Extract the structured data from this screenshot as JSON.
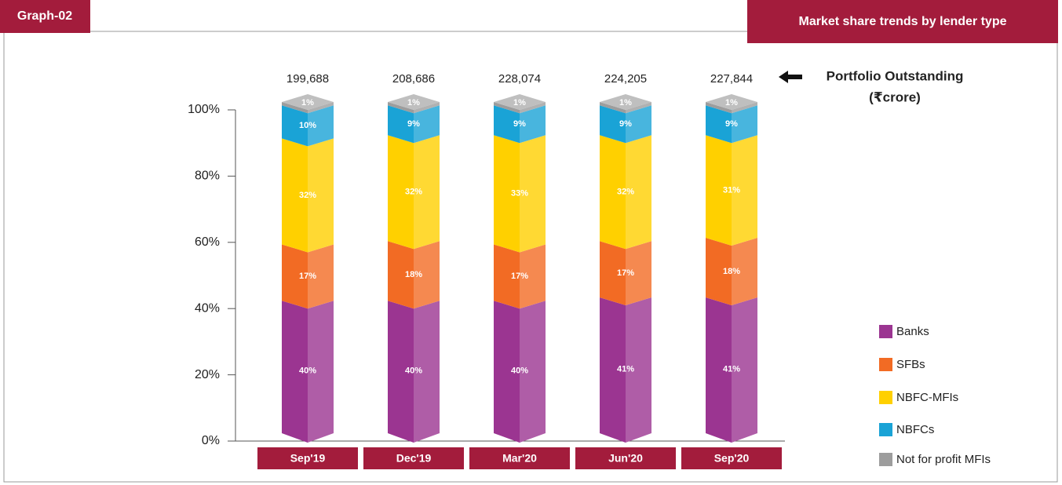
{
  "chart_data": {
    "type": "stacked-bar",
    "tag": "Graph-02",
    "title": "Market share trends by lender type",
    "categories": [
      "Sep'19",
      "Dec'19",
      "Mar'20",
      "Jun'20",
      "Sep'20"
    ],
    "series": [
      {
        "name": "Banks",
        "color": "#9b3591",
        "values": [
          40,
          40,
          40,
          41,
          41
        ],
        "value_labels": [
          "40%",
          "40%",
          "40%",
          "41%",
          "41%"
        ]
      },
      {
        "name": "SFBs",
        "color": "#f26b24",
        "values": [
          17,
          18,
          17,
          17,
          18
        ],
        "value_labels": [
          "17%",
          "18%",
          "17%",
          "17%",
          "18%"
        ]
      },
      {
        "name": "NBFC-MFIs",
        "color": "#ffd000",
        "values": [
          32,
          32,
          33,
          32,
          31
        ],
        "value_labels": [
          "32%",
          "32%",
          "33%",
          "32%",
          "31%"
        ]
      },
      {
        "name": "NBFCs",
        "color": "#1aa3d6",
        "values": [
          10,
          9,
          9,
          9,
          9
        ],
        "value_labels": [
          "10%",
          "9%",
          "9%",
          "9%",
          "9%"
        ]
      },
      {
        "name": "Not for profit MFIs",
        "color": "#9d9d9d",
        "values": [
          1,
          1,
          1,
          1,
          1
        ],
        "value_labels": [
          "1%",
          "1%",
          "1%",
          "1%",
          "1%"
        ]
      }
    ],
    "portfolio": {
      "title": "Portfolio Outstanding",
      "unit": "(₹crore)",
      "values": [
        199688,
        208686,
        228074,
        224205,
        227844
      ],
      "value_labels": [
        "199,688",
        "208,686",
        "228,074",
        "224,205",
        "227,844"
      ]
    },
    "ylim": [
      0,
      100
    ],
    "yticks": [
      {
        "value": 0,
        "label": "0%"
      },
      {
        "value": 20,
        "label": "20%"
      },
      {
        "value": 40,
        "label": "40%"
      },
      {
        "value": 60,
        "label": "60%"
      },
      {
        "value": 80,
        "label": "80%"
      },
      {
        "value": 100,
        "label": "100%"
      }
    ],
    "category_color": "#a31c3c"
  }
}
